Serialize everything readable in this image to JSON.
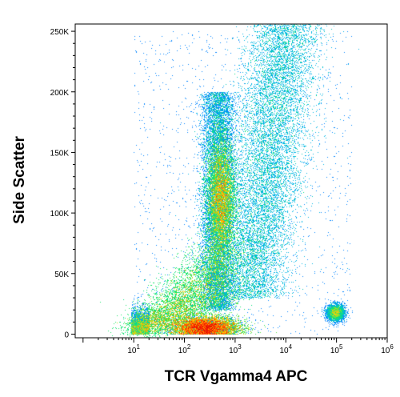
{
  "chart_data": {
    "type": "scatter",
    "title": "",
    "xlabel": "TCR Vgamma4 APC",
    "ylabel": "Side Scatter",
    "x_scale": "log",
    "xlim": [
      0.7,
      1000000
    ],
    "ylim": [
      -3000,
      256000
    ],
    "grid": false,
    "legend": "none",
    "colormap": [
      "#1a1aff",
      "#00aaff",
      "#00e676",
      "#ffd600",
      "#ff2200",
      "#b30000"
    ],
    "x_ticks": [
      {
        "value": 10,
        "base": "10",
        "exp": "1"
      },
      {
        "value": 100,
        "base": "10",
        "exp": "2"
      },
      {
        "value": 1000,
        "base": "10",
        "exp": "3"
      },
      {
        "value": 10000,
        "base": "10",
        "exp": "4"
      },
      {
        "value": 100000,
        "base": "10",
        "exp": "5"
      },
      {
        "value": 1000000,
        "base": "10",
        "exp": "6"
      }
    ],
    "y_ticks": [
      {
        "value": 0,
        "label": "0"
      },
      {
        "value": 50000,
        "label": "50K"
      },
      {
        "value": 100000,
        "label": "100K"
      },
      {
        "value": 150000,
        "label": "150K"
      },
      {
        "value": 200000,
        "label": "200K"
      },
      {
        "value": 250000,
        "label": "250K"
      }
    ],
    "populations": [
      {
        "x_center": 250,
        "y_center": 6000,
        "x_spread_log10": 0.35,
        "y_spread": 5000,
        "density": "peak"
      },
      {
        "x_center": 550,
        "y_center": 115000,
        "x_spread_log10": 0.15,
        "y_spread": 28000,
        "density": "high"
      },
      {
        "x_center": 3000,
        "y_center": 150000,
        "x_spread_log10": 0.6,
        "y_spread": 70000,
        "density": "low"
      },
      {
        "x_center": 90000,
        "y_center": 18000,
        "x_spread_log10": 0.1,
        "y_spread": 4000,
        "density": "low"
      }
    ]
  }
}
